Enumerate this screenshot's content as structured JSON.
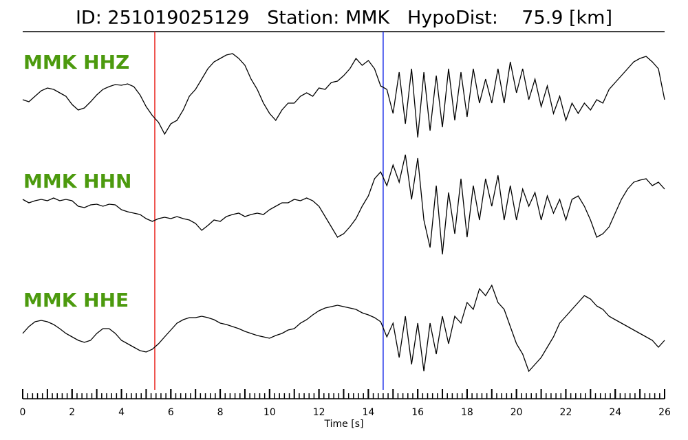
{
  "chart_data": {
    "type": "line",
    "title": "ID: 251019025129   Station: MMK   HypoDist:    75.9 [km]",
    "x_label": "Time [s]",
    "x": [
      0,
      0.25,
      0.5,
      0.75,
      1,
      1.25,
      1.5,
      1.75,
      2,
      2.25,
      2.5,
      2.75,
      3,
      3.25,
      3.5,
      3.75,
      4,
      4.25,
      4.5,
      4.75,
      5,
      5.25,
      5.5,
      5.75,
      6,
      6.25,
      6.5,
      6.75,
      7,
      7.25,
      7.5,
      7.75,
      8,
      8.25,
      8.5,
      8.75,
      9,
      9.25,
      9.5,
      9.75,
      10,
      10.25,
      10.5,
      10.75,
      11,
      11.25,
      11.5,
      11.75,
      12,
      12.25,
      12.5,
      12.75,
      13,
      13.25,
      13.5,
      13.75,
      14,
      14.25,
      14.5,
      14.75,
      15,
      15.25,
      15.5,
      15.75,
      16,
      16.25,
      16.5,
      16.75,
      17,
      17.25,
      17.5,
      17.75,
      18,
      18.25,
      18.5,
      18.75,
      19,
      19.25,
      19.5,
      19.75,
      20,
      20.25,
      20.5,
      20.75,
      21,
      21.25,
      21.5,
      21.75,
      22,
      22.25,
      22.5,
      22.75,
      23,
      23.25,
      23.5,
      23.75,
      24,
      24.25,
      24.5,
      24.75,
      25,
      25.25,
      25.5,
      25.75,
      26
    ],
    "series": [
      {
        "name": "MMK HHZ",
        "color": "#000000",
        "label_color": "#4c9a0e",
        "values": [
          0,
          -3,
          5,
          13,
          17,
          15,
          10,
          5,
          -7,
          -15,
          -12,
          -3,
          7,
          15,
          19,
          22,
          21,
          23,
          19,
          7,
          -10,
          -23,
          -33,
          -50,
          -35,
          -30,
          -15,
          5,
          15,
          30,
          45,
          55,
          60,
          65,
          67,
          60,
          50,
          30,
          15,
          -5,
          -20,
          -30,
          -15,
          -5,
          -5,
          5,
          10,
          5,
          17,
          15,
          25,
          27,
          35,
          45,
          60,
          50,
          57,
          45,
          20,
          15,
          -20,
          40,
          -35,
          45,
          -55,
          40,
          -45,
          35,
          -40,
          45,
          -30,
          40,
          -25,
          45,
          -5,
          30,
          -5,
          45,
          -5,
          55,
          10,
          45,
          0,
          30,
          -10,
          20,
          -20,
          5,
          -30,
          -5,
          -20,
          -5,
          -15,
          0,
          -5,
          15,
          25,
          35,
          45,
          55,
          60,
          63,
          55,
          45,
          0
        ]
      },
      {
        "name": "MMK HHN",
        "color": "#000000",
        "label_color": "#4c9a0e",
        "values": [
          10,
          5,
          8,
          10,
          8,
          12,
          8,
          10,
          8,
          0,
          -2,
          2,
          3,
          0,
          3,
          2,
          -5,
          -8,
          -10,
          -12,
          -18,
          -22,
          -18,
          -16,
          -18,
          -15,
          -18,
          -20,
          -25,
          -35,
          -28,
          -20,
          -22,
          -15,
          -12,
          -10,
          -15,
          -12,
          -10,
          -12,
          -5,
          0,
          5,
          5,
          10,
          8,
          12,
          8,
          0,
          -15,
          -30,
          -45,
          -40,
          -30,
          -18,
          0,
          15,
          40,
          50,
          30,
          60,
          35,
          75,
          10,
          70,
          -20,
          -60,
          30,
          -70,
          20,
          -40,
          40,
          -45,
          30,
          -20,
          40,
          0,
          45,
          -20,
          30,
          -20,
          25,
          0,
          20,
          -20,
          15,
          -10,
          10,
          -20,
          10,
          15,
          0,
          -20,
          -45,
          -40,
          -30,
          -10,
          10,
          25,
          35,
          38,
          40,
          30,
          35,
          25
        ]
      },
      {
        "name": "MMK HHE",
        "color": "#000000",
        "label_color": "#4c9a0e",
        "values": [
          -5,
          5,
          12,
          14,
          12,
          8,
          2,
          -5,
          -10,
          -15,
          -18,
          -15,
          -5,
          2,
          2,
          -5,
          -15,
          -20,
          -25,
          -30,
          -32,
          -28,
          -20,
          -10,
          0,
          10,
          15,
          18,
          18,
          20,
          18,
          15,
          10,
          8,
          5,
          2,
          -2,
          -5,
          -8,
          -10,
          -12,
          -8,
          -5,
          0,
          2,
          10,
          15,
          22,
          28,
          32,
          34,
          36,
          34,
          32,
          30,
          25,
          22,
          18,
          12,
          -10,
          10,
          -40,
          20,
          -50,
          10,
          -60,
          10,
          -35,
          20,
          -20,
          20,
          10,
          40,
          30,
          60,
          50,
          65,
          40,
          30,
          5,
          -20,
          -35,
          -60,
          -50,
          -40,
          -25,
          -10,
          10,
          20,
          30,
          40,
          50,
          45,
          35,
          30,
          20,
          15,
          10,
          5,
          0,
          -5,
          -10,
          -15,
          -25,
          -15
        ]
      }
    ],
    "ylim": [
      -80,
      80
    ],
    "xlim": [
      0,
      26
    ],
    "xticks": [
      0,
      2,
      4,
      6,
      8,
      10,
      12,
      14,
      16,
      18,
      20,
      22,
      24,
      26
    ],
    "minor_tick_step": 0.2,
    "markers": [
      {
        "x": 5.35,
        "color": "#e8201c"
      },
      {
        "x": 14.6,
        "color": "#1c2ee8"
      }
    ]
  }
}
